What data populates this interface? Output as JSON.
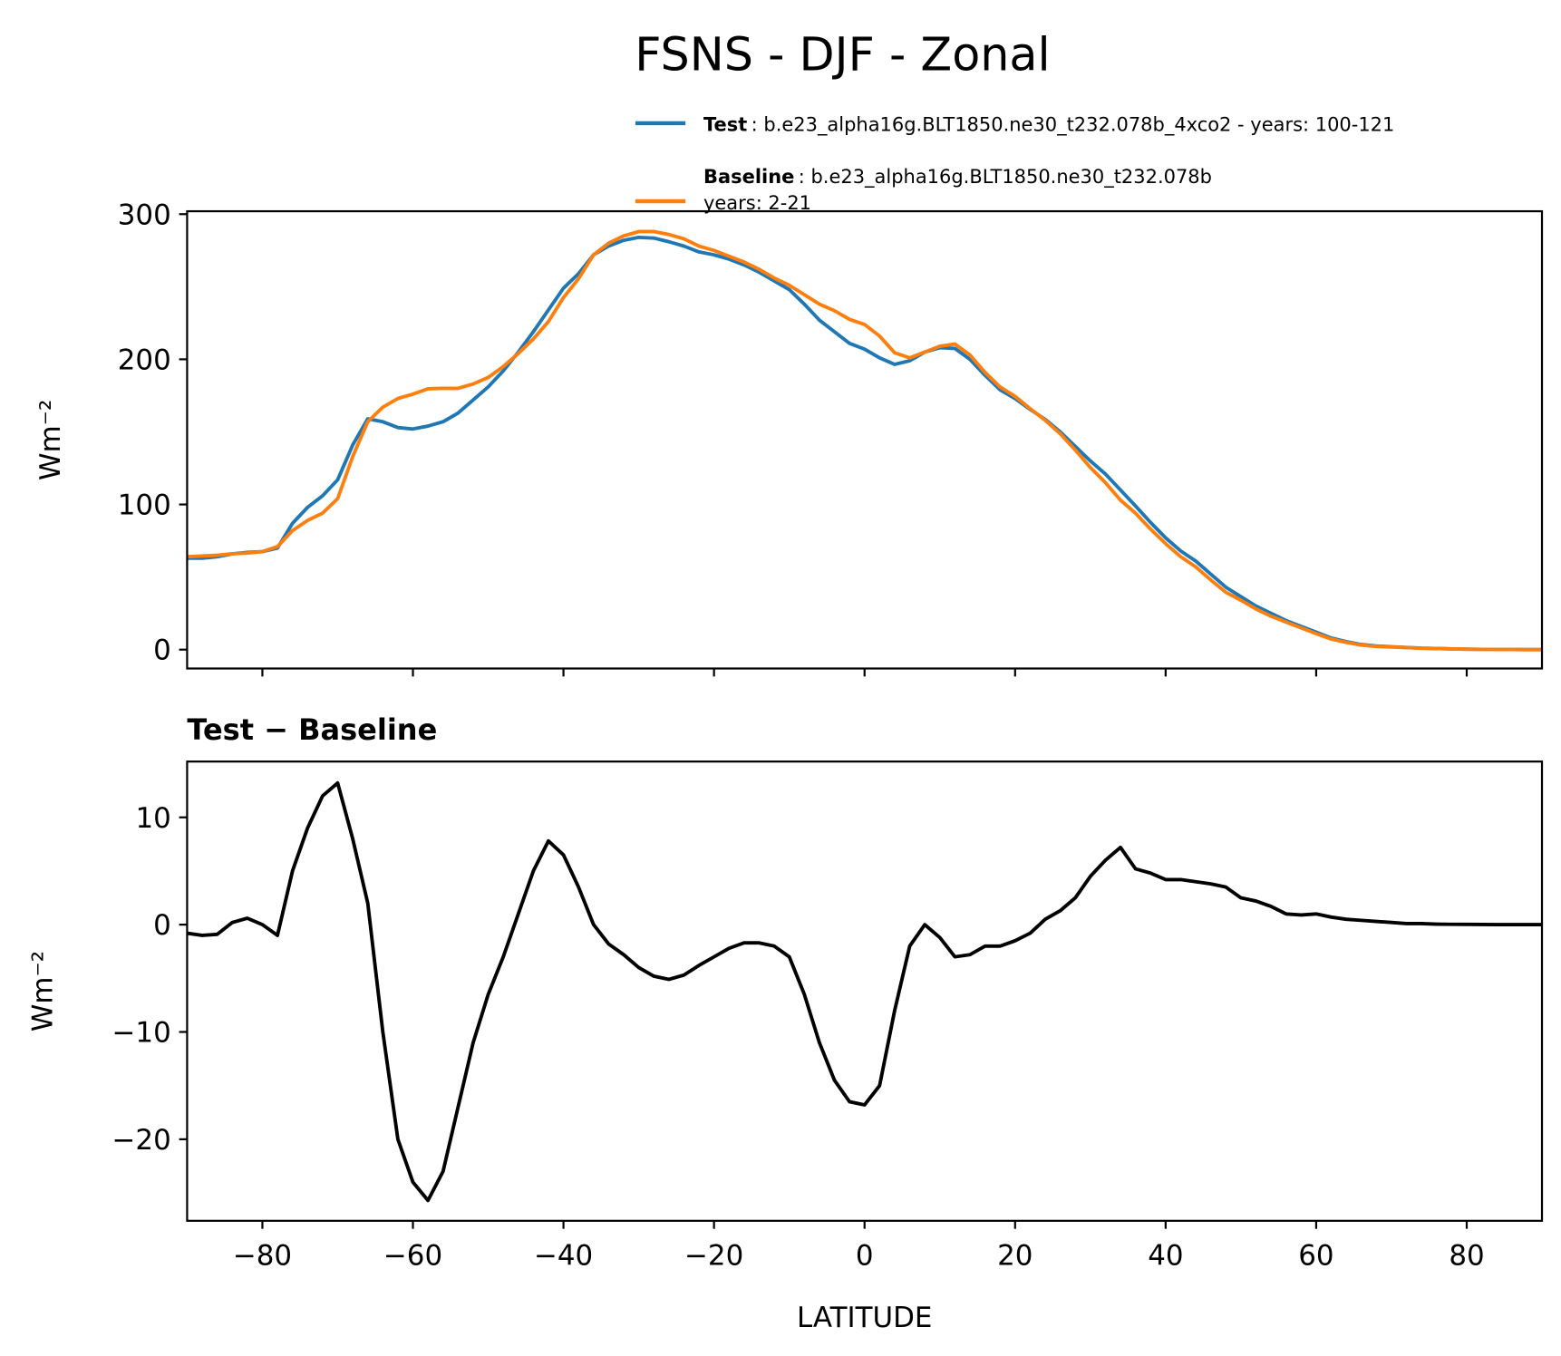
{
  "title": "FSNS - DJF - Zonal",
  "chart_data": [
    {
      "type": "line",
      "ylabel": "Wm⁻²",
      "xlim": [
        -90,
        90
      ],
      "ylim": [
        -13,
        302
      ],
      "xticks": [
        -80,
        -60,
        -40,
        -20,
        0,
        20,
        40,
        60,
        80
      ],
      "yticks": [
        0,
        100,
        200,
        300
      ],
      "x": [
        -90,
        -88,
        -86,
        -84,
        -82,
        -80,
        -78,
        -76,
        -74,
        -72,
        -70,
        -68,
        -66,
        -64,
        -62,
        -60,
        -58,
        -56,
        -54,
        -52,
        -50,
        -48,
        -46,
        -44,
        -42,
        -40,
        -38,
        -36,
        -34,
        -32,
        -30,
        -28,
        -26,
        -24,
        -22,
        -20,
        -18,
        -16,
        -14,
        -12,
        -10,
        -8,
        -6,
        -4,
        -2,
        0,
        2,
        4,
        6,
        8,
        10,
        12,
        14,
        16,
        18,
        20,
        22,
        24,
        26,
        28,
        30,
        32,
        34,
        36,
        38,
        40,
        42,
        44,
        46,
        48,
        50,
        52,
        54,
        56,
        58,
        60,
        62,
        64,
        66,
        68,
        70,
        72,
        74,
        76,
        78,
        80,
        82,
        84,
        86,
        88,
        90
      ],
      "series": [
        {
          "name": "Test",
          "description": [
            ": b.e23_alpha16g.BLT1850.ne30_t232.078b_4xco2 - years: 100-121"
          ],
          "color": "#1f77b4",
          "values": [
            63,
            63,
            64,
            66,
            67,
            67.5,
            70,
            87,
            98,
            106,
            117,
            141,
            159,
            157,
            153,
            152,
            154,
            157,
            163,
            172,
            181,
            192,
            205,
            219,
            234,
            249,
            259,
            272,
            278,
            282,
            284,
            283.5,
            281,
            278,
            274,
            272,
            269,
            265,
            260,
            254,
            248,
            238,
            227,
            219,
            211,
            207,
            201,
            196.5,
            199,
            205,
            208,
            207.5,
            200,
            189,
            179,
            173,
            165.5,
            158.6,
            150,
            140,
            130,
            121,
            110,
            99,
            87.6,
            77,
            68,
            61,
            52,
            43,
            36.5,
            30,
            25,
            20,
            16,
            12,
            8,
            5.5,
            3.5,
            2.5,
            2,
            1.5,
            1,
            0.8,
            0.5,
            0.3,
            0.2,
            0.1,
            0.1,
            0,
            0
          ]
        },
        {
          "name": "Baseline",
          "description": [
            ": b.e23_alpha16g.BLT1850.ne30_t232.078b",
            "years: 2-21"
          ],
          "color": "#ff7f0e",
          "values": [
            64,
            64.5,
            65,
            66,
            66.5,
            67.5,
            71,
            82,
            89,
            94,
            104,
            133,
            157,
            167,
            173,
            176,
            179.7,
            180,
            180,
            183,
            187.5,
            195,
            204,
            214,
            226,
            242.5,
            255.5,
            272,
            280,
            285,
            288,
            288,
            286,
            283,
            278,
            275,
            271,
            267,
            262,
            256,
            251,
            244.5,
            238,
            233.5,
            227.5,
            224,
            216,
            204.5,
            201,
            205,
            209,
            210.5,
            203,
            191,
            181,
            174.5,
            166,
            158,
            148.7,
            137.5,
            125.5,
            115,
            103,
            94,
            83,
            73,
            64,
            57,
            48,
            39.5,
            34,
            28,
            23,
            19,
            15,
            11,
            7.3,
            5,
            3.1,
            2.2,
            1.8,
            1.4,
            0.9,
            0.75,
            0.47,
            0.28,
            0.19,
            0.1,
            0.1,
            0,
            0
          ]
        }
      ]
    },
    {
      "type": "line",
      "title": "Test − Baseline",
      "xlabel": "LATITUDE",
      "ylabel": "Wm⁻²",
      "xlim": [
        -90,
        90
      ],
      "ylim": [
        -27.6,
        15.2
      ],
      "xticks": [
        {
          "value": -80,
          "label": "−80"
        },
        {
          "value": -60,
          "label": "−60"
        },
        {
          "value": -40,
          "label": "−40"
        },
        {
          "value": -20,
          "label": "−20"
        },
        0,
        20,
        40,
        60,
        80
      ],
      "yticks": [
        {
          "value": -20,
          "label": "−20"
        },
        {
          "value": -10,
          "label": "−10"
        },
        0,
        10
      ],
      "x": [
        -90,
        -88,
        -86,
        -84,
        -82,
        -80,
        -78,
        -76,
        -74,
        -72,
        -70,
        -68,
        -66,
        -64,
        -62,
        -60,
        -58,
        -56,
        -54,
        -52,
        -50,
        -48,
        -46,
        -44,
        -42,
        -40,
        -38,
        -36,
        -34,
        -32,
        -30,
        -28,
        -26,
        -24,
        -22,
        -20,
        -18,
        -16,
        -14,
        -12,
        -10,
        -8,
        -6,
        -4,
        -2,
        0,
        2,
        4,
        6,
        8,
        10,
        12,
        14,
        16,
        18,
        20,
        22,
        24,
        26,
        28,
        30,
        32,
        34,
        36,
        38,
        40,
        42,
        44,
        46,
        48,
        50,
        52,
        54,
        56,
        58,
        60,
        62,
        64,
        66,
        68,
        70,
        72,
        74,
        76,
        78,
        80,
        82,
        84,
        86,
        88,
        90
      ],
      "series": [
        {
          "color": "#000000",
          "values": [
            -0.8,
            -1.0,
            -0.9,
            0.2,
            0.6,
            0,
            -1,
            5,
            9,
            12,
            13.2,
            8,
            2,
            -10,
            -20,
            -24,
            -25.7,
            -23,
            -17,
            -11,
            -6.5,
            -3,
            1,
            5,
            7.8,
            6.5,
            3.5,
            0,
            -1.8,
            -2.8,
            -4,
            -4.8,
            -5.1,
            -4.7,
            -3.8,
            -3,
            -2.2,
            -1.7,
            -1.7,
            -2,
            -3,
            -6.5,
            -11,
            -14.5,
            -16.5,
            -16.8,
            -15,
            -8,
            -2,
            0,
            -1.2,
            -3,
            -2.8,
            -2,
            -2,
            -1.5,
            -0.8,
            0.5,
            1.3,
            2.5,
            4.5,
            6,
            7.2,
            5.2,
            4.8,
            4.2,
            4.2,
            4,
            3.8,
            3.5,
            2.5,
            2.2,
            1.7,
            1,
            0.9,
            1,
            0.7,
            0.5,
            0.4,
            0.3,
            0.2,
            0.1,
            0.1,
            0.05,
            0.03,
            0.02,
            0.01,
            0,
            0,
            0,
            0
          ]
        }
      ]
    }
  ]
}
